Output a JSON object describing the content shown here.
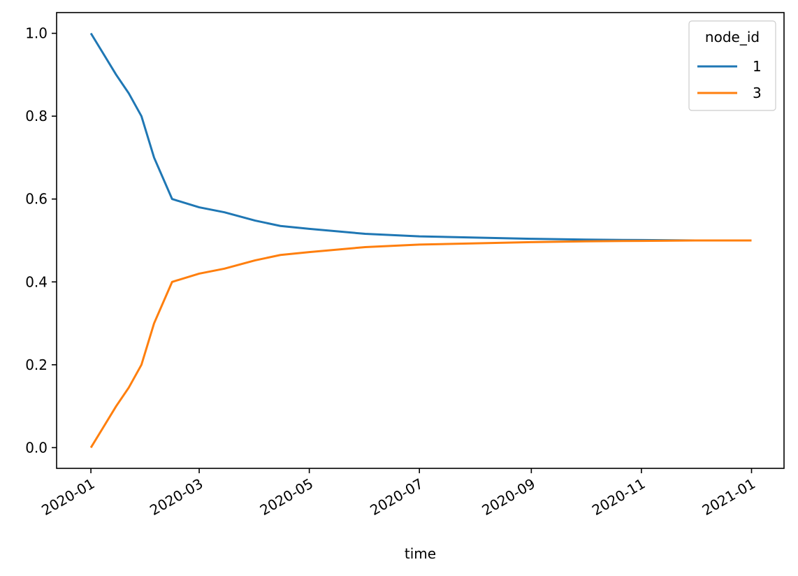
{
  "chart_data": {
    "type": "line",
    "title": "",
    "xlabel": "time",
    "ylabel": "",
    "x_tick_labels": [
      "2020-01",
      "2020-03",
      "2020-05",
      "2020-07",
      "2020-09",
      "2020-11",
      "2021-01"
    ],
    "x_ticks": [
      "2020-01-01",
      "2020-03-01",
      "2020-05-01",
      "2020-07-01",
      "2020-09-01",
      "2020-11-01",
      "2021-01-01"
    ],
    "y_tick_labels": [
      "0.0",
      "0.2",
      "0.4",
      "0.6",
      "0.8",
      "1.0"
    ],
    "y_ticks": [
      0.0,
      0.2,
      0.4,
      0.6,
      0.8,
      1.0
    ],
    "xlim": [
      "2019-12-13",
      "2021-01-19"
    ],
    "ylim": [
      -0.05,
      1.05
    ],
    "grid": false,
    "legend": {
      "title": "node_id",
      "placement": "top-right"
    },
    "series": [
      {
        "name": "1",
        "color": "#1f77b4",
        "x": [
          "2020-01-01",
          "2020-01-08",
          "2020-01-15",
          "2020-01-22",
          "2020-01-29",
          "2020-02-05",
          "2020-02-15",
          "2020-03-01",
          "2020-03-15",
          "2020-04-01",
          "2020-04-15",
          "2020-05-01",
          "2020-06-01",
          "2020-07-01",
          "2020-08-01",
          "2020-09-01",
          "2020-10-01",
          "2020-11-01",
          "2020-12-01",
          "2021-01-01"
        ],
        "values": [
          1.0,
          0.95,
          0.9,
          0.855,
          0.8,
          0.7,
          0.6,
          0.58,
          0.568,
          0.548,
          0.535,
          0.528,
          0.516,
          0.51,
          0.507,
          0.504,
          0.502,
          0.501,
          0.5,
          0.5
        ]
      },
      {
        "name": "3",
        "color": "#ff7f0e",
        "x": [
          "2020-01-01",
          "2020-01-08",
          "2020-01-15",
          "2020-01-22",
          "2020-01-29",
          "2020-02-05",
          "2020-02-15",
          "2020-03-01",
          "2020-03-15",
          "2020-04-01",
          "2020-04-15",
          "2020-05-01",
          "2020-06-01",
          "2020-07-01",
          "2020-08-01",
          "2020-09-01",
          "2020-10-01",
          "2020-11-01",
          "2020-12-01",
          "2021-01-01"
        ],
        "values": [
          0.0,
          0.05,
          0.1,
          0.145,
          0.2,
          0.3,
          0.4,
          0.42,
          0.432,
          0.452,
          0.465,
          0.472,
          0.484,
          0.49,
          0.493,
          0.496,
          0.498,
          0.499,
          0.5,
          0.5
        ]
      }
    ]
  }
}
